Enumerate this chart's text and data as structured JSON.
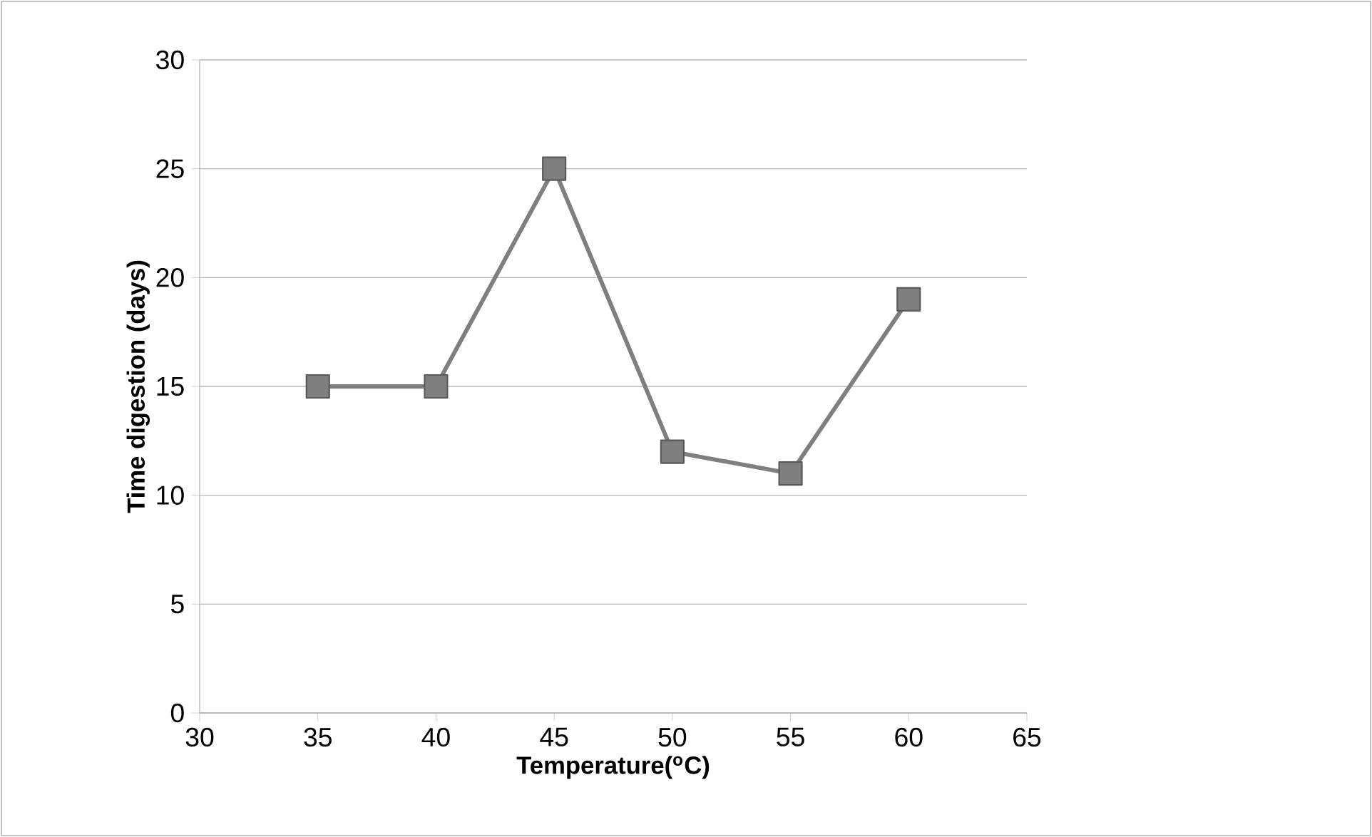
{
  "chart_data": {
    "type": "line",
    "xlabel": "Temperature($^{o}$C)",
    "ylabel": "Time digestion (days)",
    "x": [
      35,
      40,
      45,
      50,
      55,
      60
    ],
    "series": [
      {
        "color": "#7f7f7f",
        "values": [
          15,
          15,
          25,
          12,
          11,
          19
        ]
      }
    ],
    "xlim": [
      30,
      65
    ],
    "xticks": [
      30,
      35,
      40,
      45,
      50,
      55,
      60,
      65
    ],
    "ylim": [
      0,
      30
    ],
    "yticks": [
      0,
      5,
      10,
      15,
      20,
      25,
      30
    ],
    "grid": "y",
    "marker": "square",
    "line_style": "solid"
  }
}
